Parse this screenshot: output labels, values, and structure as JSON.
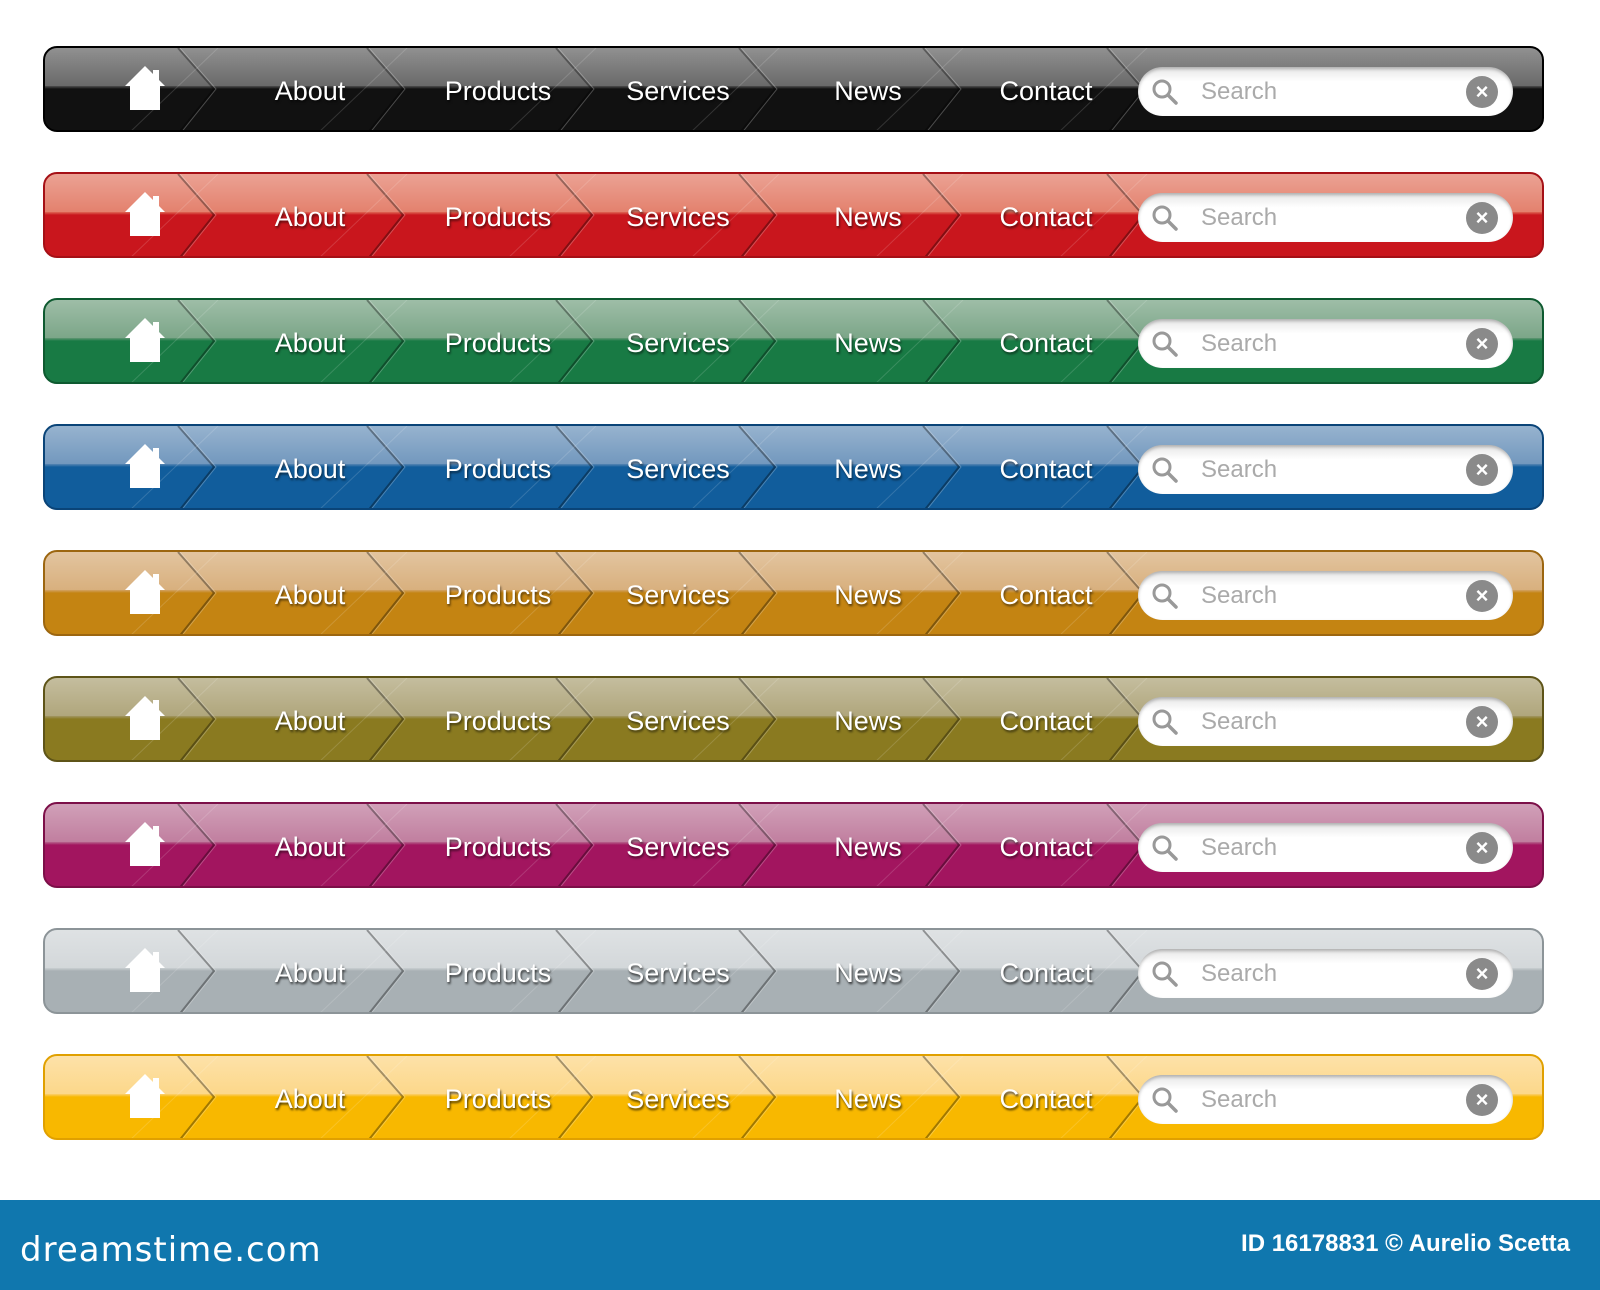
{
  "nav_items": [
    "About",
    "Products",
    "Services",
    "News",
    "Contact"
  ],
  "search": {
    "placeholder": "Search",
    "icon": "magnifier-icon",
    "clear_icon": "clear-x-icon"
  },
  "home_icon": "house-icon",
  "themes": [
    {
      "name": "black",
      "color": "#111111",
      "top": "#555555",
      "border": "#000000"
    },
    {
      "name": "red",
      "color": "#c9161d",
      "top": "#e0705a",
      "border": "#a51016"
    },
    {
      "name": "green",
      "color": "#187a44",
      "top": "#6a9a78",
      "border": "#0e5a30"
    },
    {
      "name": "blue",
      "color": "#115d9c",
      "top": "#5f8ab5",
      "border": "#0a4478"
    },
    {
      "name": "orange",
      "color": "#c48412",
      "top": "#d3a56c",
      "border": "#9c6610"
    },
    {
      "name": "olive",
      "color": "#8a7a20",
      "top": "#a59a6a",
      "border": "#5e5418"
    },
    {
      "name": "magenta",
      "color": "#a2155f",
      "top": "#b86d92",
      "border": "#7c0f48"
    },
    {
      "name": "gray",
      "color": "#a8b0b4",
      "top": "#cdd2d5",
      "border": "#8c9498"
    },
    {
      "name": "yellow",
      "color": "#f8b800",
      "top": "#fcd27a",
      "border": "#e0a000"
    }
  ],
  "footer": {
    "logo": "dreamstime.com",
    "credit": "ID 16178831 © Aurelio Scetta",
    "color": "#1077ae"
  }
}
